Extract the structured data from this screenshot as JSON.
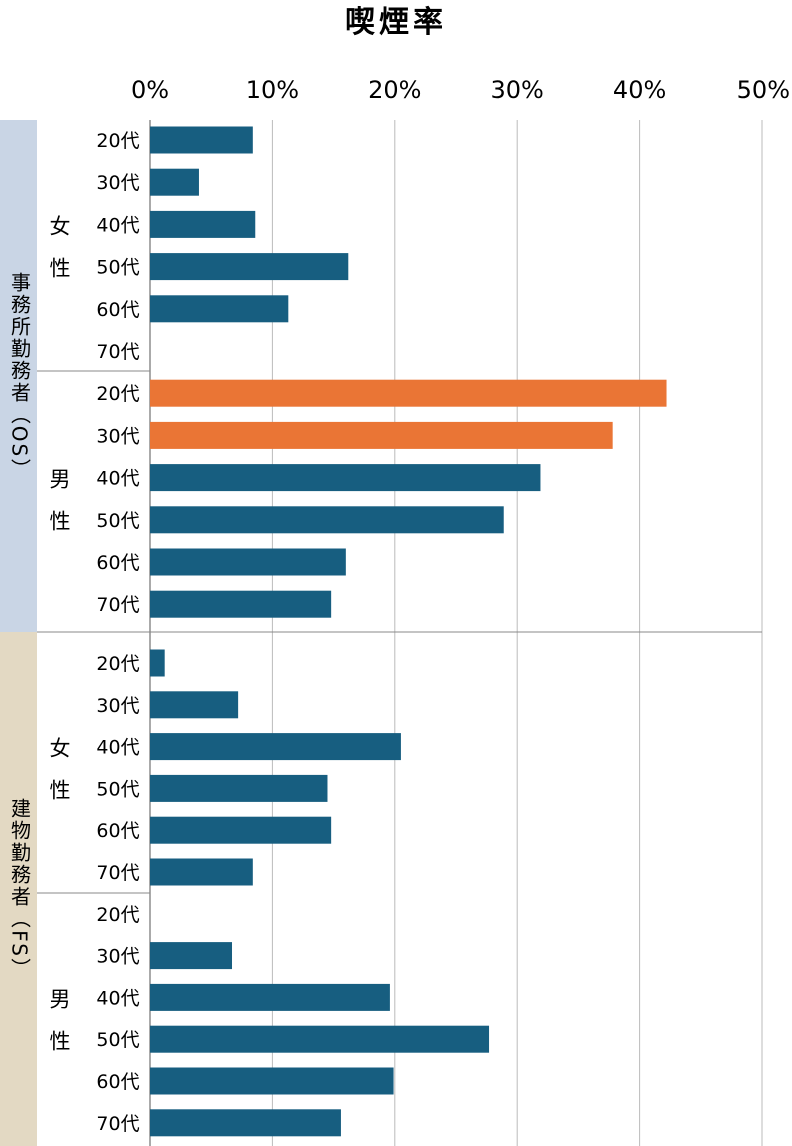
{
  "chart_data": {
    "type": "bar",
    "orientation": "horizontal",
    "title": "喫煙率",
    "xlim": [
      0,
      50
    ],
    "x_ticks": [
      "0%",
      "10%",
      "20%",
      "30%",
      "40%",
      "50%"
    ],
    "grid": true,
    "colors": {
      "default": "#175e80",
      "highlight": "#ea7535",
      "os_band": "#c9d5e5",
      "fs_band": "#e3d9c3"
    },
    "groups": [
      {
        "label": "事務所勤務者（OS）",
        "subgroups": [
          {
            "label": "女性",
            "categories": [
              "20代",
              "30代",
              "40代",
              "50代",
              "60代",
              "70代"
            ],
            "values": [
              8.4,
              4.0,
              8.6,
              16.2,
              11.3,
              null
            ],
            "highlight": [
              false,
              false,
              false,
              false,
              false,
              false
            ]
          },
          {
            "label": "男性",
            "categories": [
              "20代",
              "30代",
              "40代",
              "50代",
              "60代",
              "70代"
            ],
            "values": [
              42.2,
              37.8,
              31.9,
              28.9,
              16.0,
              14.8
            ],
            "highlight": [
              true,
              true,
              false,
              false,
              false,
              false
            ]
          }
        ]
      },
      {
        "label": "建物勤務者（FS）",
        "subgroups": [
          {
            "label": "女性",
            "categories": [
              "20代",
              "30代",
              "40代",
              "50代",
              "60代",
              "70代"
            ],
            "values": [
              1.2,
              7.2,
              20.5,
              14.5,
              14.8,
              8.4
            ],
            "highlight": [
              false,
              false,
              false,
              false,
              false,
              false
            ]
          },
          {
            "label": "男性",
            "categories": [
              "20代",
              "30代",
              "40代",
              "50代",
              "60代",
              "70代"
            ],
            "values": [
              null,
              6.7,
              19.6,
              27.7,
              19.9,
              15.6
            ],
            "highlight": [
              false,
              false,
              false,
              false,
              false,
              false
            ]
          }
        ]
      }
    ]
  }
}
